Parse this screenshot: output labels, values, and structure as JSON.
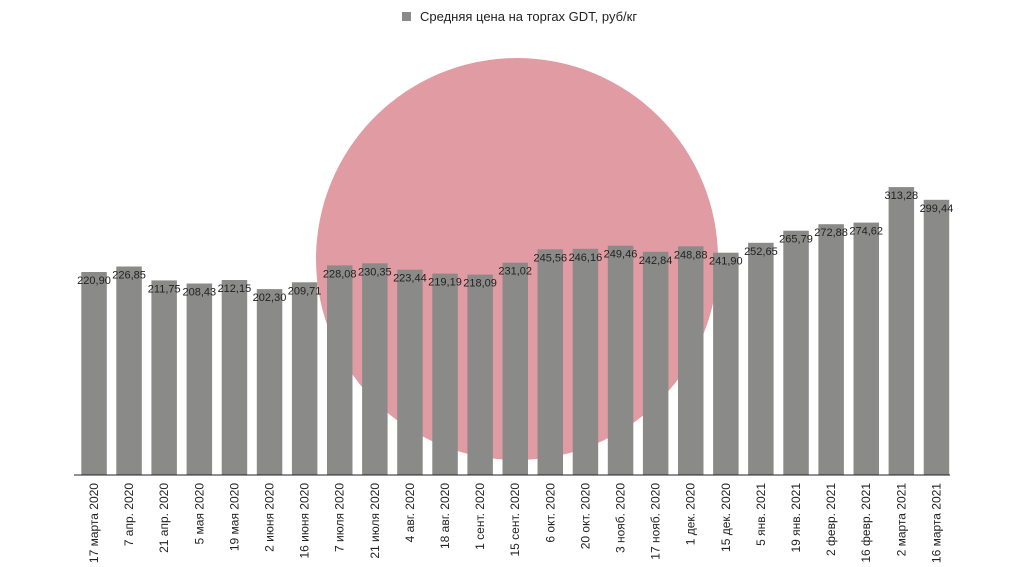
{
  "chart_data": {
    "type": "bar",
    "title": "",
    "xlabel": "",
    "ylabel": "",
    "ylim": [
      0,
      320
    ],
    "grid": false,
    "legend_placement": "top",
    "categories": [
      "17 марта 2020",
      "7 апр. 2020",
      "21 апр. 2020",
      "5 мая 2020",
      "19 мая 2020",
      "2 июня 2020",
      "16 июня 2020",
      "7 июля 2020",
      "21 июля 2020",
      "4 авг. 2020",
      "18 авг. 2020",
      "1 сент. 2020",
      "15 сент. 2020",
      "6 окт. 2020",
      "20 окт. 2020",
      "3 нояб. 2020",
      "17 нояб. 2020",
      "1 дек. 2020",
      "15 дек. 2020",
      "5 янв. 2021",
      "19 янв. 2021",
      "2 февр. 2021",
      "16 февр. 2021",
      "2 марта 2021",
      "16 марта 2021"
    ],
    "series": [
      {
        "name": "Средняя цена на торгах GDT, руб/кг",
        "color": "#8a8b89",
        "values": [
          220.9,
          226.85,
          211.75,
          208.43,
          212.15,
          202.3,
          209.71,
          228.08,
          230.35,
          223.44,
          219.19,
          218.09,
          231.02,
          245.56,
          246.16,
          249.46,
          242.84,
          248.88,
          241.9,
          252.65,
          265.79,
          272.88,
          274.62,
          313.28,
          299.44
        ],
        "labels": [
          "220,90",
          "226,85",
          "211,75",
          "208,43",
          "212,15",
          "202,30",
          "209,71",
          "228,08",
          "230,35",
          "223,44",
          "219,19",
          "218,09",
          "231,02",
          "245,56",
          "246,16",
          "249,46",
          "242,84",
          "248,88",
          "241,90",
          "252,65",
          "265,79",
          "272,88",
          "274,62",
          "313,28",
          "299,44"
        ]
      }
    ]
  },
  "colors": {
    "bar": "#8a8b89",
    "watermark": "#dc8a92",
    "axis": "#222222"
  },
  "watermark_icon": "circle-logo-watermark"
}
